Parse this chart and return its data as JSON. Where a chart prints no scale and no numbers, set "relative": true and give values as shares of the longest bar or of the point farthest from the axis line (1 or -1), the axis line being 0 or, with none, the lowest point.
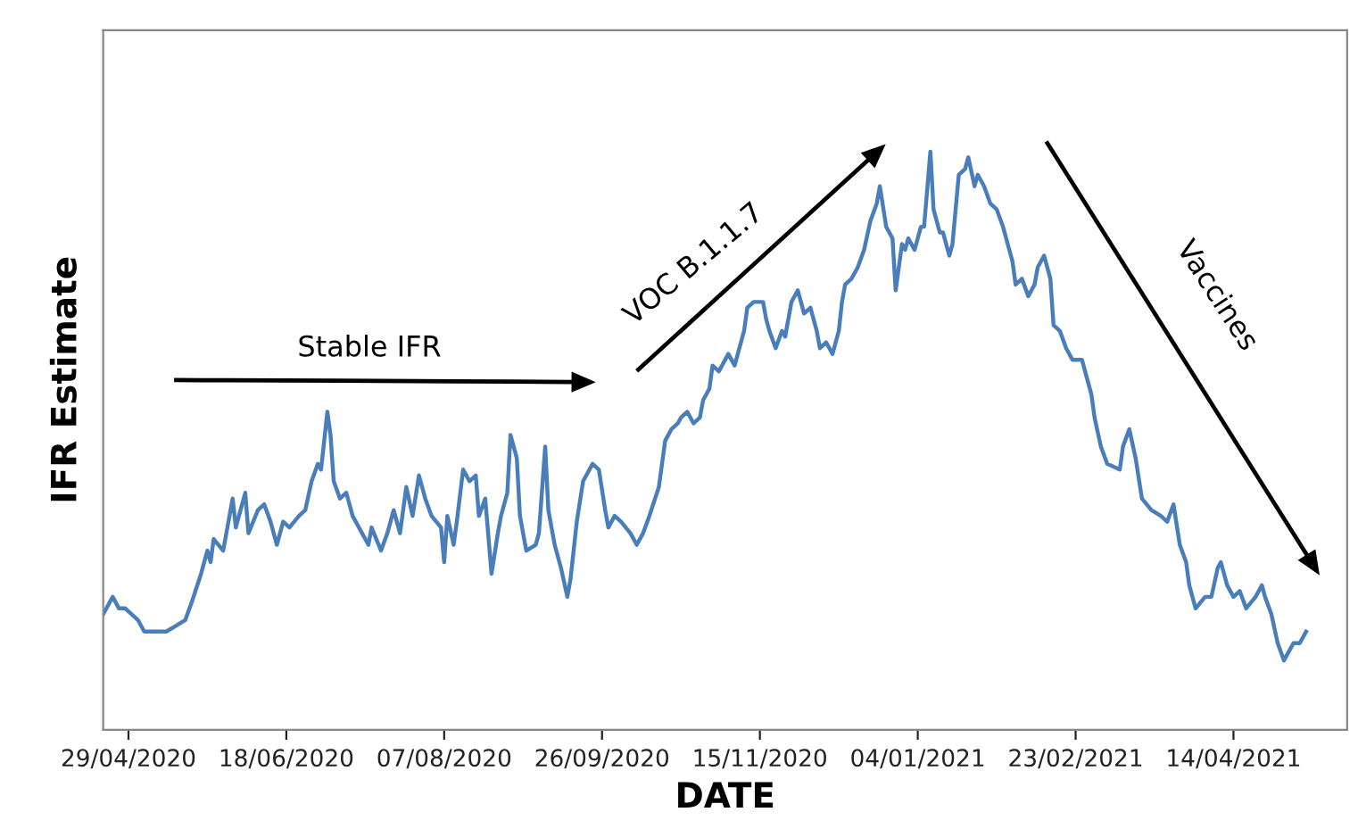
{
  "chart_data": {
    "type": "line",
    "xlabel": "DATE",
    "ylabel": "IFR Estimate",
    "relative": true,
    "grid": false,
    "legend": false,
    "marker": "none",
    "line_style": "solid",
    "annotations": [
      "Stable IFR",
      "VOC B.1.1.7",
      "Vaccines"
    ],
    "xlim": [
      "2020-04-21",
      "2021-05-20"
    ],
    "xticks": [
      {
        "value": "2020-04-29",
        "label": "29/04/2020"
      },
      {
        "value": "2020-06-18",
        "label": "18/06/2020"
      },
      {
        "value": "2020-08-07",
        "label": "07/08/2020"
      },
      {
        "value": "2020-09-26",
        "label": "26/09/2020"
      },
      {
        "value": "2020-11-15",
        "label": "15/11/2020"
      },
      {
        "value": "2021-01-04",
        "label": "04/01/2021"
      },
      {
        "value": "2021-02-23",
        "label": "23/02/2021"
      },
      {
        "value": "2021-04-14",
        "label": "14/04/2021"
      }
    ],
    "series": [
      {
        "color": "#4a7ebb",
        "x": [
          "2020-04-21",
          "2020-04-24",
          "2020-04-26",
          "2020-04-28",
          "2020-04-30",
          "2020-05-02",
          "2020-05-04",
          "2020-05-07",
          "2020-05-11",
          "2020-05-14",
          "2020-05-17",
          "2020-05-19",
          "2020-05-22",
          "2020-05-24",
          "2020-05-25",
          "2020-05-26",
          "2020-05-29",
          "2020-05-31",
          "2020-06-01",
          "2020-06-02",
          "2020-06-05",
          "2020-06-06",
          "2020-06-09",
          "2020-06-11",
          "2020-06-13",
          "2020-06-15",
          "2020-06-17",
          "2020-06-19",
          "2020-06-22",
          "2020-06-24",
          "2020-06-26",
          "2020-06-28",
          "2020-06-29",
          "2020-07-01",
          "2020-07-02",
          "2020-07-03",
          "2020-07-05",
          "2020-07-07",
          "2020-07-09",
          "2020-07-11",
          "2020-07-14",
          "2020-07-15",
          "2020-07-18",
          "2020-07-20",
          "2020-07-22",
          "2020-07-24",
          "2020-07-26",
          "2020-07-28",
          "2020-07-30",
          "2020-08-01",
          "2020-08-03",
          "2020-08-06",
          "2020-08-07",
          "2020-08-08",
          "2020-08-10",
          "2020-08-11",
          "2020-08-13",
          "2020-08-15",
          "2020-08-17",
          "2020-08-18",
          "2020-08-20",
          "2020-08-22",
          "2020-08-24",
          "2020-08-25",
          "2020-08-27",
          "2020-08-28",
          "2020-08-30",
          "2020-08-31",
          "2020-09-02",
          "2020-09-05",
          "2020-09-06",
          "2020-09-08",
          "2020-09-09",
          "2020-09-11",
          "2020-09-13",
          "2020-09-15",
          "2020-09-16",
          "2020-09-18",
          "2020-09-20",
          "2020-09-23",
          "2020-09-25",
          "2020-09-27",
          "2020-09-28",
          "2020-09-30",
          "2020-10-02",
          "2020-10-05",
          "2020-10-07",
          "2020-10-09",
          "2020-10-11",
          "2020-10-14",
          "2020-10-16",
          "2020-10-18",
          "2020-10-20",
          "2020-10-21",
          "2020-10-23",
          "2020-10-25",
          "2020-10-27",
          "2020-10-28",
          "2020-10-30",
          "2020-10-31",
          "2020-11-02",
          "2020-11-05",
          "2020-11-07",
          "2020-11-10",
          "2020-11-11",
          "2020-11-13",
          "2020-11-16",
          "2020-11-17",
          "2020-11-18",
          "2020-11-20",
          "2020-11-22",
          "2020-11-23",
          "2020-11-25",
          "2020-11-27",
          "2020-11-29",
          "2020-12-01",
          "2020-12-03",
          "2020-12-04",
          "2020-12-06",
          "2020-12-08",
          "2020-12-10",
          "2020-12-11",
          "2020-12-12",
          "2020-12-14",
          "2020-12-16",
          "2020-12-18",
          "2020-12-20",
          "2020-12-22",
          "2020-12-23",
          "2020-12-25",
          "2020-12-27",
          "2020-12-28",
          "2020-12-30",
          "2020-12-31",
          "2021-01-01",
          "2021-01-03",
          "2021-01-05",
          "2021-01-06",
          "2021-01-08",
          "2021-01-09",
          "2021-01-11",
          "2021-01-12",
          "2021-01-14",
          "2021-01-15",
          "2021-01-17",
          "2021-01-19",
          "2021-01-20",
          "2021-01-22",
          "2021-01-23",
          "2021-01-25",
          "2021-01-27",
          "2021-01-29",
          "2021-01-31",
          "2021-02-02",
          "2021-02-03",
          "2021-02-04",
          "2021-02-06",
          "2021-02-08",
          "2021-02-10",
          "2021-02-11",
          "2021-02-13",
          "2021-02-15",
          "2021-02-16",
          "2021-02-18",
          "2021-02-20",
          "2021-02-22",
          "2021-02-25",
          "2021-02-28",
          "2021-03-01",
          "2021-03-03",
          "2021-03-05",
          "2021-03-09",
          "2021-03-10",
          "2021-03-12",
          "2021-03-14",
          "2021-03-16",
          "2021-03-19",
          "2021-03-22",
          "2021-03-24",
          "2021-03-26",
          "2021-03-28",
          "2021-03-30",
          "2021-03-31",
          "2021-04-02",
          "2021-04-05",
          "2021-04-07",
          "2021-04-09",
          "2021-04-10",
          "2021-04-12",
          "2021-04-14",
          "2021-04-16",
          "2021-04-18",
          "2021-04-21",
          "2021-04-23",
          "2021-04-24",
          "2021-04-26",
          "2021-04-28",
          "2021-04-30",
          "2021-05-01",
          "2021-05-03",
          "2021-05-05",
          "2021-05-07"
        ],
        "values": [
          0.2,
          0.23,
          0.21,
          0.21,
          0.2,
          0.19,
          0.17,
          0.17,
          0.17,
          0.18,
          0.19,
          0.22,
          0.27,
          0.31,
          0.29,
          0.33,
          0.31,
          0.37,
          0.4,
          0.35,
          0.41,
          0.34,
          0.38,
          0.39,
          0.36,
          0.32,
          0.36,
          0.35,
          0.37,
          0.38,
          0.43,
          0.46,
          0.45,
          0.55,
          0.51,
          0.43,
          0.4,
          0.41,
          0.37,
          0.35,
          0.32,
          0.35,
          0.31,
          0.34,
          0.38,
          0.34,
          0.42,
          0.37,
          0.44,
          0.4,
          0.37,
          0.35,
          0.29,
          0.37,
          0.32,
          0.36,
          0.45,
          0.43,
          0.44,
          0.37,
          0.4,
          0.27,
          0.34,
          0.37,
          0.41,
          0.51,
          0.47,
          0.37,
          0.31,
          0.32,
          0.34,
          0.49,
          0.38,
          0.32,
          0.28,
          0.23,
          0.26,
          0.36,
          0.43,
          0.46,
          0.45,
          0.38,
          0.35,
          0.37,
          0.36,
          0.34,
          0.32,
          0.34,
          0.37,
          0.42,
          0.5,
          0.52,
          0.53,
          0.54,
          0.55,
          0.53,
          0.54,
          0.57,
          0.59,
          0.63,
          0.62,
          0.65,
          0.63,
          0.69,
          0.73,
          0.74,
          0.74,
          0.71,
          0.69,
          0.66,
          0.69,
          0.68,
          0.74,
          0.76,
          0.72,
          0.73,
          0.69,
          0.66,
          0.67,
          0.65,
          0.69,
          0.74,
          0.77,
          0.78,
          0.8,
          0.83,
          0.88,
          0.91,
          0.94,
          0.87,
          0.85,
          0.76,
          0.84,
          0.83,
          0.85,
          0.83,
          0.87,
          0.87,
          1.0,
          0.9,
          0.86,
          0.86,
          0.82,
          0.84,
          0.96,
          0.97,
          0.99,
          0.94,
          0.96,
          0.94,
          0.91,
          0.9,
          0.87,
          0.83,
          0.81,
          0.77,
          0.78,
          0.75,
          0.77,
          0.8,
          0.82,
          0.78,
          0.7,
          0.69,
          0.66,
          0.64,
          0.64,
          0.58,
          0.54,
          0.49,
          0.46,
          0.45,
          0.49,
          0.52,
          0.47,
          0.4,
          0.38,
          0.37,
          0.36,
          0.39,
          0.32,
          0.29,
          0.25,
          0.21,
          0.23,
          0.23,
          0.28,
          0.29,
          0.25,
          0.23,
          0.24,
          0.21,
          0.23,
          0.25,
          0.23,
          0.2,
          0.15,
          0.12,
          0.13,
          0.15,
          0.15,
          0.17
        ]
      }
    ]
  }
}
